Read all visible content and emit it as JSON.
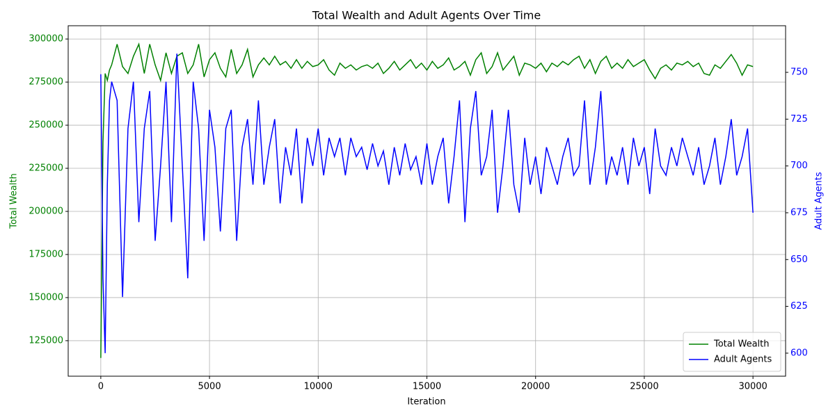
{
  "chart_data": {
    "type": "line",
    "title": "Total Wealth and Adult Agents Over Time",
    "x_label": "Iteration",
    "y_label": "Total Wealth",
    "y2_label": "Adult Agents",
    "x": [
      0,
      100,
      200,
      300,
      400,
      500,
      750,
      1000,
      1250,
      1500,
      1750,
      2000,
      2250,
      2500,
      2750,
      3000,
      3250,
      3500,
      3750,
      4000,
      4250,
      4500,
      4750,
      5000,
      5250,
      5500,
      5750,
      6000,
      6250,
      6500,
      6750,
      7000,
      7250,
      7500,
      7750,
      8000,
      8250,
      8500,
      8750,
      9000,
      9250,
      9500,
      9750,
      10000,
      10250,
      10500,
      10750,
      11000,
      11250,
      11500,
      11750,
      12000,
      12250,
      12500,
      12750,
      13000,
      13250,
      13500,
      13750,
      14000,
      14250,
      14500,
      14750,
      15000,
      15250,
      15500,
      15750,
      16000,
      16250,
      16500,
      16750,
      17000,
      17250,
      17500,
      17750,
      18000,
      18250,
      18500,
      18750,
      19000,
      19250,
      19500,
      19750,
      20000,
      20250,
      20500,
      20750,
      21000,
      21250,
      21500,
      21750,
      22000,
      22250,
      22500,
      22750,
      23000,
      23250,
      23500,
      23750,
      24000,
      24250,
      24500,
      24750,
      25000,
      25250,
      25500,
      25750,
      26000,
      26250,
      26500,
      26750,
      27000,
      27250,
      27500,
      27750,
      28000,
      28250,
      28500,
      28750,
      29000,
      29250,
      29500,
      29750,
      30000
    ],
    "series": [
      {
        "name": "Total Wealth",
        "color": "#008000",
        "axis": "y",
        "values": [
          115000,
          240000,
          280000,
          276000,
          282000,
          285000,
          297000,
          284000,
          280000,
          290000,
          297000,
          280000,
          297000,
          285000,
          276000,
          292000,
          280000,
          290000,
          292000,
          280000,
          285000,
          297000,
          278000,
          288000,
          292000,
          283000,
          278000,
          294000,
          280000,
          285000,
          294000,
          278000,
          285000,
          289000,
          285000,
          290000,
          285000,
          287000,
          283000,
          288000,
          283000,
          287000,
          284000,
          285000,
          288000,
          282000,
          279000,
          286000,
          283000,
          285000,
          282000,
          284000,
          285000,
          283000,
          286000,
          280000,
          283000,
          287000,
          282000,
          285000,
          288000,
          283000,
          286000,
          282000,
          287000,
          283000,
          285000,
          289000,
          282000,
          284000,
          287000,
          279000,
          288000,
          292000,
          280000,
          284000,
          292000,
          282000,
          286000,
          290000,
          279000,
          286000,
          285000,
          283000,
          286000,
          281000,
          286000,
          284000,
          287000,
          285000,
          288000,
          290000,
          283000,
          288000,
          280000,
          287000,
          290000,
          283000,
          286000,
          283000,
          288000,
          284000,
          286000,
          288000,
          282000,
          277000,
          283000,
          285000,
          282000,
          286000,
          285000,
          287000,
          284000,
          286000,
          280000,
          279000,
          285000,
          283000,
          287000,
          291000,
          286000,
          279000,
          285000,
          284000
        ]
      },
      {
        "name": "Adult Agents",
        "color": "#0000ff",
        "axis": "y2",
        "values": [
          749,
          640,
          600,
          690,
          735,
          745,
          735,
          630,
          720,
          745,
          670,
          720,
          740,
          660,
          700,
          745,
          670,
          760,
          700,
          640,
          745,
          720,
          660,
          730,
          710,
          665,
          720,
          730,
          660,
          710,
          725,
          690,
          735,
          690,
          710,
          725,
          680,
          710,
          695,
          720,
          680,
          715,
          700,
          720,
          695,
          715,
          705,
          715,
          695,
          715,
          705,
          710,
          698,
          712,
          700,
          708,
          690,
          710,
          695,
          712,
          698,
          705,
          690,
          712,
          690,
          705,
          715,
          680,
          705,
          735,
          670,
          720,
          740,
          695,
          705,
          730,
          675,
          700,
          730,
          690,
          675,
          715,
          690,
          705,
          685,
          710,
          700,
          690,
          705,
          715,
          695,
          700,
          735,
          690,
          710,
          740,
          690,
          705,
          695,
          710,
          690,
          715,
          700,
          710,
          685,
          720,
          700,
          695,
          710,
          700,
          715,
          705,
          695,
          710,
          690,
          700,
          715,
          690,
          705,
          725,
          695,
          705,
          720,
          675
        ]
      }
    ],
    "xlim": [
      -1500,
      31500
    ],
    "xticks": [
      0,
      5000,
      10000,
      15000,
      20000,
      25000,
      30000
    ],
    "ylim": [
      104400,
      307700
    ],
    "yticks": [
      125000,
      150000,
      175000,
      200000,
      225000,
      250000,
      275000,
      300000
    ],
    "y2lim": [
      587.7,
      774.9
    ],
    "y2ticks": [
      600,
      625,
      650,
      675,
      700,
      725,
      750
    ],
    "grid": true,
    "legend": "lower-right"
  }
}
